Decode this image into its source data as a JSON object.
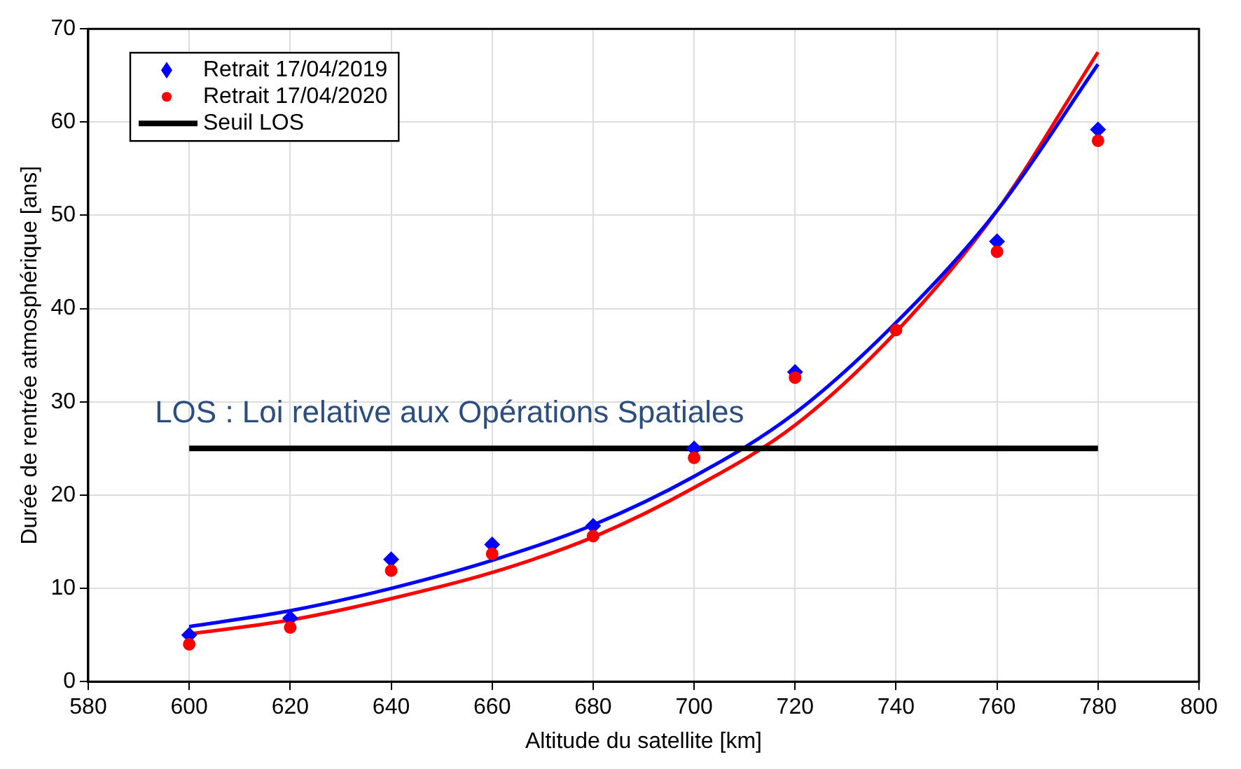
{
  "chart_data": {
    "type": "scatter",
    "xlabel": "Altitude du satellite [km]",
    "ylabel": "Durée de rentrée atmosphérique [ans]",
    "xlim": [
      580,
      800
    ],
    "xticks": [
      580,
      600,
      620,
      640,
      660,
      680,
      700,
      720,
      740,
      760,
      780,
      800
    ],
    "ylim": [
      0,
      70
    ],
    "yticks": [
      0,
      10,
      20,
      30,
      40,
      50,
      60,
      70
    ],
    "grid": true,
    "legend": "top left",
    "series": [
      {
        "name": "Retrait 17/04/2019",
        "type": "scatter",
        "marker": "diamond",
        "color": "#0000ff",
        "x": [
          600,
          620,
          640,
          660,
          680,
          700,
          720,
          740,
          760,
          780
        ],
        "values": [
          5.0,
          6.8,
          13.1,
          14.7,
          16.7,
          25.0,
          33.2,
          null,
          47.2,
          59.2
        ]
      },
      {
        "name": "Retrait 17/04/2020",
        "type": "scatter",
        "marker": "circle",
        "color": "#ff0000",
        "x": [
          600,
          620,
          640,
          660,
          680,
          700,
          720,
          740,
          760,
          780
        ],
        "values": [
          4.0,
          5.8,
          11.9,
          13.7,
          15.6,
          24.0,
          32.6,
          37.7,
          46.1,
          58.0
        ]
      },
      {
        "name": "Seuil LOS",
        "type": "line",
        "color": "#000000",
        "x": [
          600,
          780
        ],
        "values": [
          25,
          25
        ]
      },
      {
        "type": "line",
        "color": "#0000ff",
        "x": [
          600,
          620,
          640,
          660,
          680,
          700,
          720,
          740,
          760,
          780
        ],
        "values": [
          5.9,
          7.6,
          10.0,
          13.0,
          16.8,
          22.0,
          28.8,
          38.5,
          50.5,
          66.2
        ]
      },
      {
        "type": "line",
        "color": "#ff0000",
        "x": [
          600,
          620,
          640,
          660,
          680,
          700,
          720,
          740,
          760,
          780
        ],
        "values": [
          5.1,
          6.6,
          8.9,
          11.7,
          15.5,
          20.8,
          27.5,
          37.5,
          50.5,
          67.5
        ]
      }
    ],
    "annotations": [
      "LOS : Loi relative aux Opérations Spatiales"
    ]
  }
}
